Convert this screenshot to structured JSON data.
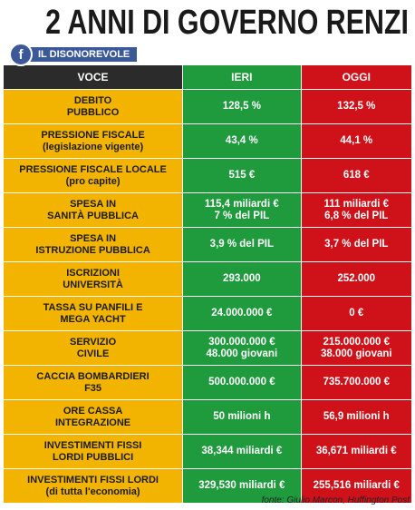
{
  "header": {
    "title": "2 ANNI DI GOVERNO RENZI",
    "badge": "IL DISONOREVOLE"
  },
  "table": {
    "columns": [
      "VOCE",
      "IERI",
      "OGGI"
    ],
    "rows": [
      [
        [
          "DEBITO",
          "PUBBLICO"
        ],
        [
          "128,5 %"
        ],
        [
          "132,5 %"
        ]
      ],
      [
        [
          "PRESSIONE FISCALE",
          "(legislazione vigente)"
        ],
        [
          "43,4 %"
        ],
        [
          "44,1 %"
        ]
      ],
      [
        [
          "PRESSIONE FISCALE LOCALE",
          "(pro capite)"
        ],
        [
          "515 €"
        ],
        [
          "618 €"
        ]
      ],
      [
        [
          "SPESA IN",
          "SANITÀ PUBBLICA"
        ],
        [
          "115,4 miliardi €",
          "7 % del PIL"
        ],
        [
          "111 miliardi €",
          "6,8 % del PIL"
        ]
      ],
      [
        [
          "SPESA IN",
          "ISTRUZIONE PUBBLICA"
        ],
        [
          "3,9 % del PIL"
        ],
        [
          "3,7 % del PIL"
        ]
      ],
      [
        [
          "ISCRIZIONI",
          "UNIVERSITÀ"
        ],
        [
          "293.000"
        ],
        [
          "252.000"
        ]
      ],
      [
        [
          "TASSA SU PANFILI E",
          "MEGA YACHT"
        ],
        [
          "24.000.000 €"
        ],
        [
          "0 €"
        ]
      ],
      [
        [
          "SERVIZIO",
          "CIVILE"
        ],
        [
          "300.000.000 €",
          "48.000 giovani"
        ],
        [
          "215.000.000 €",
          "38.000 giovani"
        ]
      ],
      [
        [
          "CACCIA BOMBARDIERI",
          "F35"
        ],
        [
          "500.000.000 €"
        ],
        [
          "735.700.000 €"
        ]
      ],
      [
        [
          "ORE CASSA",
          "INTEGRAZIONE"
        ],
        [
          "50 milioni h"
        ],
        [
          "56,9 milioni h"
        ]
      ],
      [
        [
          "INVESTIMENTI FISSI",
          "LORDI PUBBLICI"
        ],
        [
          "38,344 miliardi €"
        ],
        [
          "36,671 miliardi €"
        ]
      ],
      [
        [
          "INVESTIMENTI FISSI LORDI",
          "(di tutta l'economia)"
        ],
        [
          "329,530 miliardi €"
        ],
        [
          "255,516 miliardi €"
        ]
      ]
    ]
  },
  "footer": {
    "source": "fonte: Giulio Marcon, Huffington Post"
  }
}
